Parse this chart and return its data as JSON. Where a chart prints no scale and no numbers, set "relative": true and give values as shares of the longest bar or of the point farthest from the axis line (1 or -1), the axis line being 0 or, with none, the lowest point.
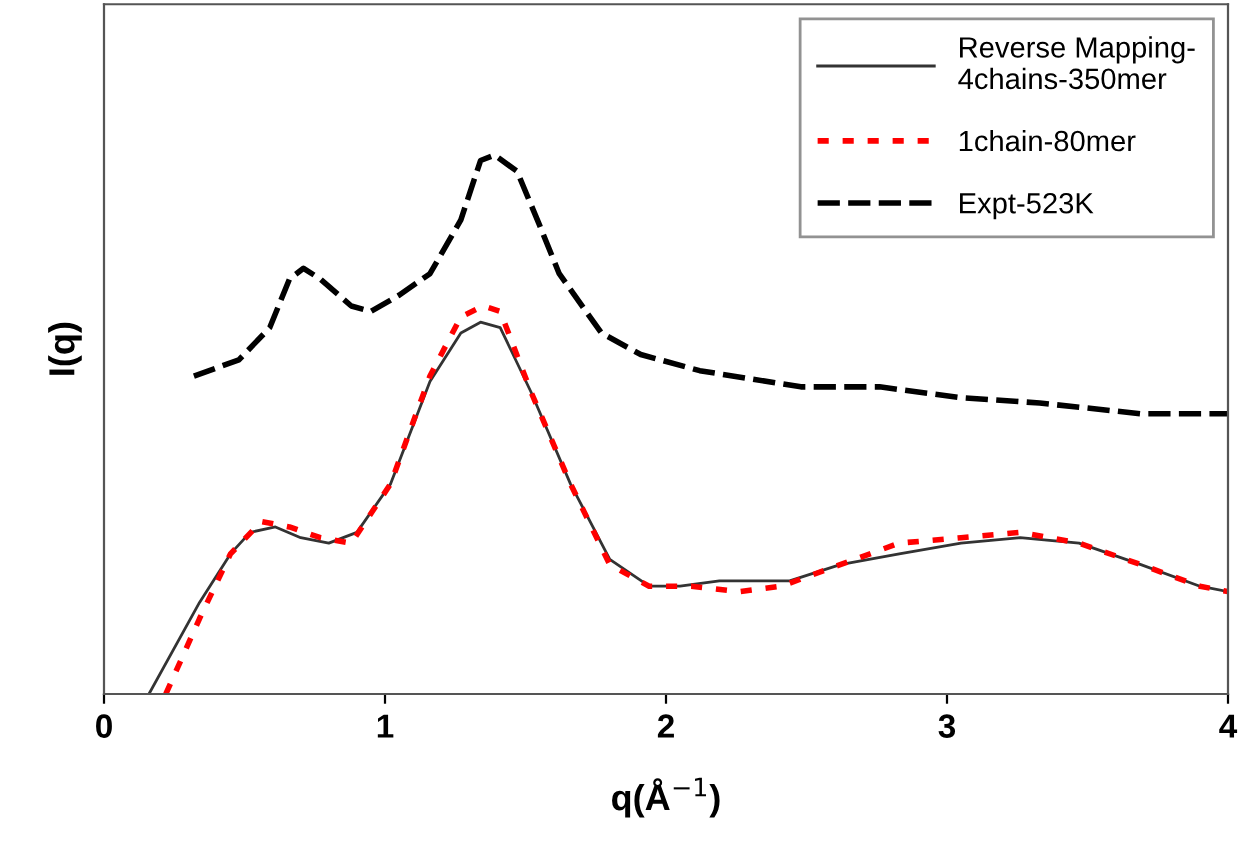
{
  "chart_data": {
    "type": "line",
    "relative": true,
    "xlabel": "q(Å$^{−1}$)",
    "ylabel": "I(q)",
    "xlim": [
      0,
      4
    ],
    "xticks": [
      0,
      1,
      2,
      3,
      4
    ],
    "tick_labels": "x",
    "grid": false,
    "legend": "top right",
    "series": [
      {
        "name": "Reverse Mapping-\n4chains-350mer",
        "color": "#333333",
        "line_style": "solid",
        "x": [
          0.16,
          0.34,
          0.45,
          0.52,
          0.61,
          0.7,
          0.8,
          0.9,
          1.02,
          1.16,
          1.27,
          1.34,
          1.41,
          1.52,
          1.66,
          1.8,
          1.94,
          2.05,
          2.19,
          2.44,
          2.62,
          2.83,
          3.05,
          3.26,
          3.47,
          3.69,
          3.9,
          4.0
        ],
        "values": [
          0,
          0.17,
          0.26,
          0.3,
          0.31,
          0.29,
          0.28,
          0.3,
          0.39,
          0.58,
          0.67,
          0.69,
          0.68,
          0.56,
          0.39,
          0.25,
          0.2,
          0.2,
          0.21,
          0.21,
          0.24,
          0.26,
          0.28,
          0.29,
          0.28,
          0.24,
          0.2,
          0.19
        ]
      },
      {
        "name": "1chain-80mer",
        "color": "#ff0000",
        "line_style": "dotted",
        "x": [
          0.22,
          0.34,
          0.45,
          0.56,
          0.66,
          0.77,
          0.88,
          1.02,
          1.16,
          1.27,
          1.35,
          1.41,
          1.52,
          1.66,
          1.8,
          1.94,
          2.09,
          2.26,
          2.41,
          2.62,
          2.83,
          3.05,
          3.26,
          3.47,
          3.69,
          3.9,
          4.0
        ],
        "values": [
          0,
          0.14,
          0.26,
          0.32,
          0.31,
          0.29,
          0.28,
          0.39,
          0.59,
          0.7,
          0.72,
          0.71,
          0.56,
          0.39,
          0.24,
          0.2,
          0.2,
          0.19,
          0.2,
          0.24,
          0.28,
          0.29,
          0.3,
          0.28,
          0.24,
          0.2,
          0.19
        ]
      },
      {
        "name": "Expt-523K",
        "color": "#000000",
        "line_style": "dashed",
        "x": [
          0.32,
          0.48,
          0.59,
          0.66,
          0.71,
          0.77,
          0.88,
          0.95,
          1.05,
          1.16,
          1.27,
          1.34,
          1.39,
          1.47,
          1.55,
          1.62,
          1.77,
          1.91,
          2.12,
          2.48,
          2.76,
          3.05,
          3.33,
          3.69,
          4.0
        ],
        "values": [
          0.59,
          0.62,
          0.68,
          0.77,
          0.79,
          0.77,
          0.72,
          0.71,
          0.74,
          0.78,
          0.88,
          0.99,
          1.0,
          0.97,
          0.87,
          0.78,
          0.67,
          0.63,
          0.6,
          0.57,
          0.57,
          0.55,
          0.54,
          0.52,
          0.52
        ]
      }
    ]
  }
}
